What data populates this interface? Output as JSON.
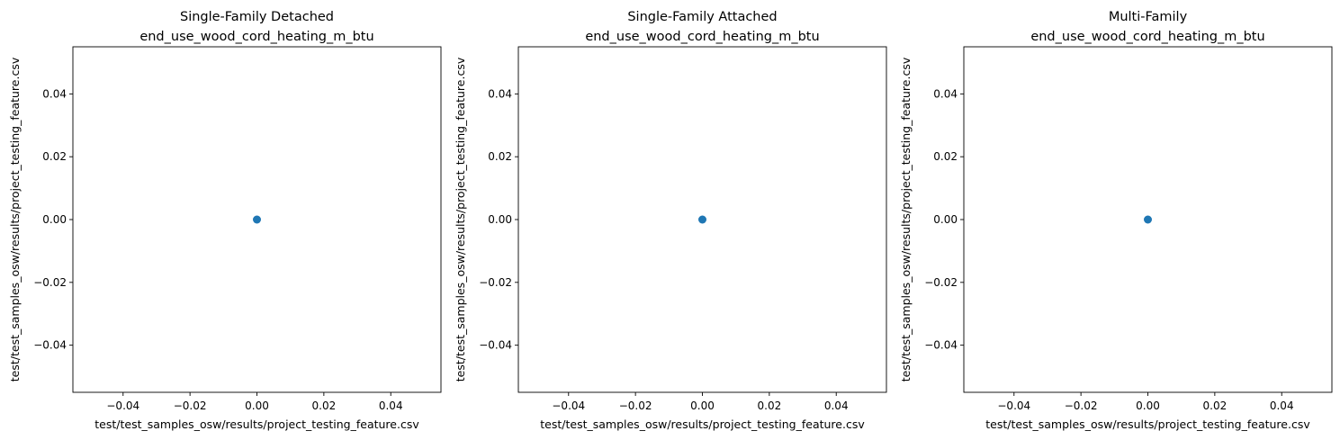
{
  "chart_data": [
    {
      "type": "scatter",
      "title": [
        "Single-Family Detached",
        "end_use_wood_cord_heating_m_btu"
      ],
      "xlabel": "test/test_samples_osw/results/project_testing_feature.csv",
      "ylabel": "test/test_samples_osw/results/project_testing_feature.csv",
      "xlim": [
        -0.055,
        0.055
      ],
      "ylim": [
        -0.055,
        0.055
      ],
      "xticks": [
        -0.04,
        -0.02,
        0.0,
        0.02,
        0.04
      ],
      "yticks": [
        -0.04,
        -0.02,
        0.0,
        0.02,
        0.04
      ],
      "xtick_labels": [
        "−0.04",
        "−0.02",
        "0.00",
        "0.02",
        "0.04"
      ],
      "ytick_labels": [
        "−0.04",
        "−0.02",
        "0.00",
        "0.02",
        "0.04"
      ],
      "grid": false,
      "series": [
        {
          "x": [
            0.0
          ],
          "y": [
            0.0
          ],
          "color": "#1f77b4"
        }
      ]
    },
    {
      "type": "scatter",
      "title": [
        "Single-Family Attached",
        "end_use_wood_cord_heating_m_btu"
      ],
      "xlabel": "test/test_samples_osw/results/project_testing_feature.csv",
      "ylabel": "test/test_samples_osw/results/project_testing_feature.csv",
      "xlim": [
        -0.055,
        0.055
      ],
      "ylim": [
        -0.055,
        0.055
      ],
      "xticks": [
        -0.04,
        -0.02,
        0.0,
        0.02,
        0.04
      ],
      "yticks": [
        -0.04,
        -0.02,
        0.0,
        0.02,
        0.04
      ],
      "xtick_labels": [
        "−0.04",
        "−0.02",
        "0.00",
        "0.02",
        "0.04"
      ],
      "ytick_labels": [
        "−0.04",
        "−0.02",
        "0.00",
        "0.02",
        "0.04"
      ],
      "grid": false,
      "series": [
        {
          "x": [
            0.0
          ],
          "y": [
            0.0
          ],
          "color": "#1f77b4"
        }
      ]
    },
    {
      "type": "scatter",
      "title": [
        "Multi-Family",
        "end_use_wood_cord_heating_m_btu"
      ],
      "xlabel": "test/test_samples_osw/results/project_testing_feature.csv",
      "ylabel": "test/test_samples_osw/results/project_testing_feature.csv",
      "xlim": [
        -0.055,
        0.055
      ],
      "ylim": [
        -0.055,
        0.055
      ],
      "xticks": [
        -0.04,
        -0.02,
        0.0,
        0.02,
        0.04
      ],
      "yticks": [
        -0.04,
        -0.02,
        0.0,
        0.02,
        0.04
      ],
      "xtick_labels": [
        "−0.04",
        "−0.02",
        "0.00",
        "0.02",
        "0.04"
      ],
      "ytick_labels": [
        "−0.04",
        "−0.02",
        "0.00",
        "0.02",
        "0.04"
      ],
      "grid": false,
      "series": [
        {
          "x": [
            0.0
          ],
          "y": [
            0.0
          ],
          "color": "#1f77b4"
        }
      ]
    }
  ]
}
